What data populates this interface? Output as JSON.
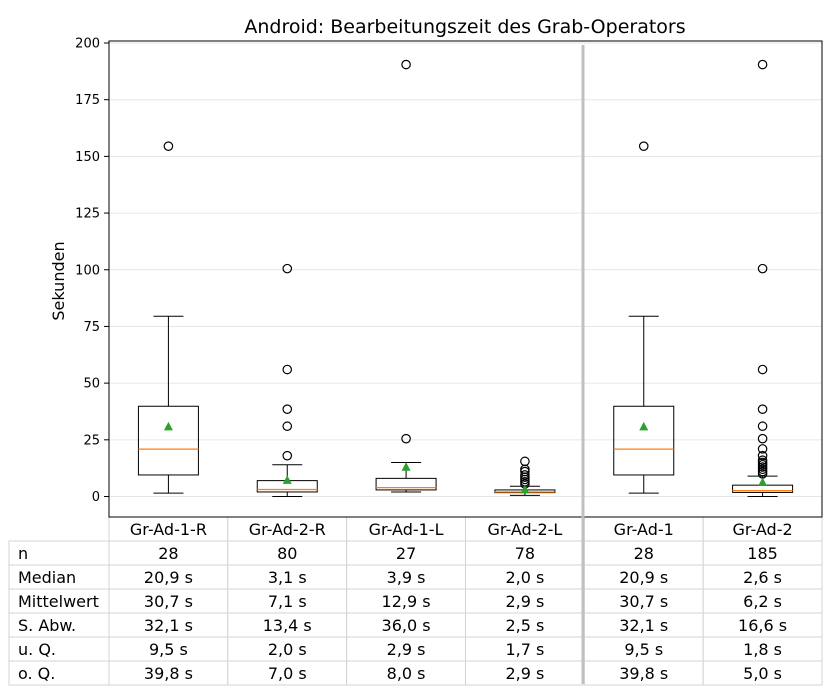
{
  "chart_data": {
    "type": "box",
    "title": "Android: Bearbeitungszeit des Grab-Operators",
    "ylabel": "Sekunden",
    "xlabel": "",
    "ylim": [
      -9,
      200
    ],
    "yticks": [
      0,
      25,
      50,
      75,
      100,
      125,
      150,
      175,
      200
    ],
    "grid": "horizontal",
    "groups": [
      {
        "name": "Gr-Ad-1-R",
        "whisker_low": 1.5,
        "q1": 9.5,
        "median": 20.9,
        "q3": 39.8,
        "whisker_high": 79.5,
        "mean": 30.7,
        "fliers": [
          154.5
        ]
      },
      {
        "name": "Gr-Ad-2-R",
        "whisker_low": 0,
        "q1": 2.0,
        "median": 3.1,
        "q3": 7.0,
        "whisker_high": 14,
        "mean": 7.1,
        "fliers": [
          18,
          31,
          38.5,
          56,
          100.5
        ]
      },
      {
        "name": "Gr-Ad-1-L",
        "whisker_low": 2,
        "q1": 2.9,
        "median": 3.9,
        "q3": 8.0,
        "whisker_high": 15,
        "mean": 12.9,
        "fliers": [
          25.5,
          190.5
        ]
      },
      {
        "name": "Gr-Ad-2-L",
        "whisker_low": 0.5,
        "q1": 1.7,
        "median": 2.0,
        "q3": 2.9,
        "whisker_high": 4.5,
        "mean": 2.9,
        "fliers": [
          5.5,
          6.5,
          7.5,
          8.5,
          9.5,
          11,
          12,
          15.5
        ]
      },
      {
        "name": "Gr-Ad-1",
        "whisker_low": 1.5,
        "q1": 9.5,
        "median": 20.9,
        "q3": 39.8,
        "whisker_high": 79.5,
        "mean": 30.7,
        "fliers": [
          154.5
        ]
      },
      {
        "name": "Gr-Ad-2",
        "whisker_low": 0,
        "q1": 1.8,
        "median": 2.6,
        "q3": 5.0,
        "whisker_high": 9,
        "mean": 6.2,
        "fliers": [
          10,
          11,
          12,
          13,
          14,
          15,
          16,
          18,
          21,
          25.5,
          31,
          38.5,
          56,
          100.5,
          190.5
        ]
      }
    ],
    "table": {
      "rows": [
        {
          "label": "n",
          "values": [
            "28",
            "80",
            "27",
            "78",
            "28",
            "185"
          ]
        },
        {
          "label": "Median",
          "values": [
            "20,9 s",
            "3,1 s",
            "3,9 s",
            "2,0 s",
            "20,9 s",
            "2,6 s"
          ]
        },
        {
          "label": "Mittelwert",
          "values": [
            "30,7 s",
            "7,1 s",
            "12,9 s",
            "2,9 s",
            "30,7 s",
            "6,2 s"
          ]
        },
        {
          "label": "S. Abw.",
          "values": [
            "32,1 s",
            "13,4 s",
            "36,0 s",
            "2,5 s",
            "32,1 s",
            "16,6 s"
          ]
        },
        {
          "label": "u. Q.",
          "values": [
            "9,5 s",
            "2,0 s",
            "2,9 s",
            "1,7 s",
            "9,5 s",
            "1,8 s"
          ]
        },
        {
          "label": "o. Q.",
          "values": [
            "39,8 s",
            "7,0 s",
            "8,0 s",
            "2,9 s",
            "39,8 s",
            "5,0 s"
          ]
        }
      ]
    },
    "colors": {
      "box": "#000000",
      "median": "#ff7f0e",
      "mean": "#2ca02c",
      "separator": "#c0c0c0",
      "grid": "#e6e6e6",
      "table_border": "#d3d3d3"
    }
  }
}
